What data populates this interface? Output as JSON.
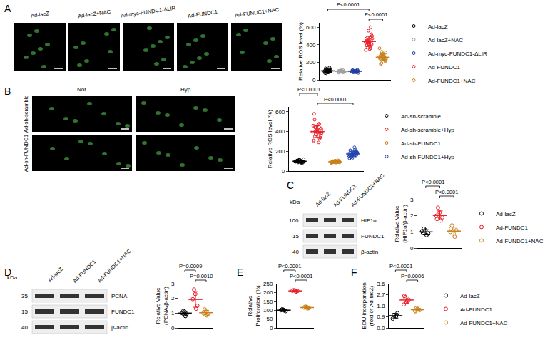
{
  "panel_letters": [
    "A",
    "B",
    "C",
    "D",
    "E",
    "F"
  ],
  "micrographs": {
    "A": {
      "columns": [
        "Ad-lacZ",
        "Ad-lacZ+NAC",
        "Ad-myc-FUNDC1-ΔLIR",
        "Ad-FUNDC1",
        "Ad-FUNDC1+NAC"
      ]
    },
    "B": {
      "columns": [
        "Nor",
        "Hyp"
      ],
      "rows": [
        "Ad-sh-scramble",
        "Ad-sh-FUNDC1"
      ]
    }
  },
  "blots": {
    "C": {
      "unit": "kDa",
      "lanes": [
        "Ad-lacZ",
        "Ad-FUNDC1",
        "Ad-FUNDC1+NAC"
      ],
      "bands": [
        {
          "label": "HIF1α",
          "kDa": 100
        },
        {
          "label": "FUNDC1",
          "kDa": 15
        },
        {
          "label": "β-actin",
          "kDa": 40
        }
      ]
    },
    "D": {
      "unit": "kDa",
      "lanes": [
        "Ad-lacZ",
        "Ad-FUNDC1",
        "Ad-FUNDC1+NAC"
      ],
      "bands": [
        {
          "label": "PCNA",
          "kDa": 35
        },
        {
          "label": "FUNDC1",
          "kDa": 15
        },
        {
          "label": "β-actin",
          "kDa": 40
        }
      ]
    }
  },
  "chart_data": [
    {
      "panel": "A",
      "type": "scatter",
      "y_label": "Relative ROS level (%)",
      "ylim": [
        0,
        650
      ],
      "yticks": [
        0,
        200,
        400,
        600
      ],
      "tick_labels": "y",
      "grid": false,
      "legend": "right",
      "marker": "circle-open",
      "series": [
        {
          "name": "Ad-lacZ",
          "color": "#000000",
          "values": [
            100,
            88,
            112,
            95,
            105,
            78,
            120,
            92,
            108,
            85,
            130,
            98,
            102,
            90,
            115,
            75,
            110,
            96,
            104,
            140
          ],
          "mean": 102,
          "sd": 16
        },
        {
          "name": "Ad-lacZ+NAC",
          "color": "#a0a0a0",
          "values": [
            95,
            88,
            100,
            92,
            105,
            82,
            110,
            98,
            90,
            102,
            86,
            96,
            108,
            94,
            84,
            100,
            91,
            97,
            103,
            89
          ],
          "mean": 95,
          "sd": 7
        },
        {
          "name": "Ad-myc-FUNDC1-ΔLIR",
          "color": "#1f3fa0",
          "values": [
            92,
            100,
            85,
            105,
            95,
            110,
            88,
            98,
            80,
            102,
            94,
            115,
            90,
            96,
            86,
            104,
            99,
            92,
            108,
            97
          ],
          "mean": 97,
          "sd": 8
        },
        {
          "name": "Ad-FUNDC1",
          "color": "#e8202a",
          "values": [
            430,
            380,
            450,
            520,
            410,
            470,
            360,
            440,
            500,
            420,
            395,
            460,
            560,
            340,
            480,
            430,
            405,
            450,
            390,
            600,
            425,
            470,
            350,
            440,
            415
          ],
          "mean": 437,
          "sd": 57
        },
        {
          "name": "Ad-FUNDC1+NAC",
          "color": "#c8801a",
          "values": [
            260,
            240,
            280,
            220,
            300,
            250,
            270,
            190,
            310,
            245,
            265,
            230,
            285,
            360,
            255,
            275,
            210,
            290,
            240,
            260,
            320,
            235,
            270,
            180,
            250
          ],
          "mean": 257,
          "sd": 36
        }
      ],
      "annotations": [
        {
          "text": "P<0.0001",
          "between": [
            "Ad-lacZ",
            "Ad-FUNDC1"
          ]
        },
        {
          "text": "P<0.0001",
          "between": [
            "Ad-FUNDC1",
            "Ad-FUNDC1+NAC"
          ]
        }
      ]
    },
    {
      "panel": "B",
      "type": "scatter",
      "y_label": "Relative ROS level (%)",
      "ylim": [
        0,
        650
      ],
      "yticks": [
        0,
        200,
        400,
        600
      ],
      "tick_labels": "y",
      "grid": false,
      "legend": "right",
      "marker": "circle-open",
      "series": [
        {
          "name": "Ad-sh-scramble",
          "color": "#000000",
          "values": [
            100,
            92,
            108,
            85,
            115,
            95,
            104,
            88,
            120,
            98,
            102,
            90,
            110,
            96,
            80,
            106,
            94,
            112,
            99,
            87,
            103,
            97
          ],
          "mean": 99,
          "sd": 10
        },
        {
          "name": "Ad-sh-scramble+Hyp",
          "color": "#e8202a",
          "values": [
            400,
            350,
            450,
            380,
            420,
            310,
            480,
            370,
            430,
            390,
            520,
            340,
            410,
            460,
            290,
            440,
            360,
            400,
            580,
            330,
            415,
            385,
            470,
            350,
            425,
            395,
            300,
            445,
            375,
            405
          ],
          "mean": 399,
          "sd": 60
        },
        {
          "name": "Ad-sh-FUNDC1",
          "color": "#c8801a",
          "values": [
            95,
            88,
            100,
            92,
            105,
            82,
            98,
            90,
            102,
            86,
            96,
            108,
            94,
            84,
            100,
            91,
            97,
            103,
            89,
            93,
            99,
            87,
            101,
            95,
            90
          ],
          "mean": 94,
          "sd": 7
        },
        {
          "name": "Ad-sh-FUNDC1+Hyp",
          "color": "#1f3fb0",
          "values": [
            175,
            150,
            200,
            160,
            190,
            130,
            220,
            170,
            185,
            145,
            210,
            165,
            180,
            155,
            240,
            140,
            195,
            175,
            160,
            205,
            125,
            185,
            170,
            150,
            190
          ],
          "mean": 174,
          "sd": 27
        }
      ],
      "annotations": [
        {
          "text": "P<0.0001",
          "between": [
            "Ad-sh-scramble",
            "Ad-sh-scramble+Hyp"
          ]
        },
        {
          "text": "P<0.0001",
          "between": [
            "Ad-sh-scramble+Hyp",
            "Ad-sh-FUNDC1+Hyp"
          ]
        }
      ]
    },
    {
      "panel": "C",
      "type": "scatter",
      "y_label": "Relative Value\n(HIF1α/β-actin)",
      "ylim": [
        0,
        3
      ],
      "yticks": [
        0,
        1,
        2,
        3
      ],
      "tick_labels": "y",
      "grid": false,
      "legend": "right",
      "marker": "circle-open",
      "series": [
        {
          "name": "Ad-lacZ",
          "color": "#000000",
          "values": [
            1.05,
            0.8,
            1.2,
            0.9,
            1.1,
            0.95
          ],
          "mean": 1.0,
          "sd": 0.14
        },
        {
          "name": "Ad-FUNDC1",
          "color": "#e8202a",
          "values": [
            2.0,
            1.7,
            2.5,
            1.9,
            2.2,
            1.8
          ],
          "mean": 2.02,
          "sd": 0.28
        },
        {
          "name": "Ad-FUNDC1+NAC",
          "color": "#c8801a",
          "values": [
            1.0,
            0.7,
            1.4,
            1.1,
            0.9,
            1.2
          ],
          "mean": 1.05,
          "sd": 0.24
        }
      ],
      "annotations": [
        {
          "text": "P<0.0001",
          "between": [
            "Ad-lacZ",
            "Ad-FUNDC1"
          ]
        },
        {
          "text": "P<0.0001",
          "between": [
            "Ad-FUNDC1",
            "Ad-FUNDC1+NAC"
          ]
        }
      ]
    },
    {
      "panel": "D",
      "type": "scatter",
      "y_label": "Relative Value\n(PCNA/β-actin)",
      "ylim": [
        0,
        3
      ],
      "yticks": [
        0,
        1,
        2,
        3
      ],
      "tick_labels": "y",
      "grid": false,
      "legend": false,
      "marker": "circle-open",
      "series": [
        {
          "name": "Ad-lacZ",
          "color": "#000000",
          "values": [
            1.0,
            0.8,
            1.15,
            0.95,
            1.1
          ],
          "mean": 1.0,
          "sd": 0.13
        },
        {
          "name": "Ad-FUNDC1",
          "color": "#e8202a",
          "values": [
            1.95,
            1.3,
            2.6,
            1.5,
            2.3
          ],
          "mean": 1.93,
          "sd": 0.53
        },
        {
          "name": "Ad-FUNDC1+NAC",
          "color": "#c8801a",
          "values": [
            1.0,
            0.85,
            1.25,
            0.95,
            1.1
          ],
          "mean": 1.03,
          "sd": 0.16
        }
      ],
      "annotations": [
        {
          "text": "P=0.0009",
          "between": [
            "Ad-lacZ",
            "Ad-FUNDC1"
          ]
        },
        {
          "text": "P=0.0010",
          "between": [
            "Ad-FUNDC1",
            "Ad-FUNDC1+NAC"
          ]
        }
      ]
    },
    {
      "panel": "E",
      "type": "scatter",
      "y_label": "Relative\nProliferation (%)",
      "ylim": [
        0,
        250
      ],
      "yticks": [
        0,
        50,
        100,
        150,
        200,
        250
      ],
      "tick_labels": "y",
      "grid": false,
      "legend": false,
      "marker": "circle-open",
      "series": [
        {
          "name": "Ad-lacZ",
          "color": "#000000",
          "values": [
            100,
            98,
            105,
            95,
            102
          ],
          "mean": 100,
          "sd": 4
        },
        {
          "name": "Ad-FUNDC1",
          "color": "#e8202a",
          "values": [
            210,
            205,
            213,
            208,
            211
          ],
          "mean": 209,
          "sd": 3
        },
        {
          "name": "Ad-FUNDC1+NAC",
          "color": "#c8801a",
          "values": [
            115,
            110,
            120,
            112,
            118
          ],
          "mean": 115,
          "sd": 4
        }
      ],
      "annotations": [
        {
          "text": "P<0.0001",
          "between": [
            "Ad-lacZ",
            "Ad-FUNDC1"
          ]
        },
        {
          "text": "P<0.0001",
          "between": [
            "Ad-FUNDC1",
            "Ad-FUNDC1+NAC"
          ]
        }
      ]
    },
    {
      "panel": "F",
      "type": "scatter",
      "y_label": "EDU incorporation\n(fold of Ad-lacZ)",
      "ylim": [
        0,
        3.6
      ],
      "yticks": [
        {
          "value": 0,
          "label": "0.0"
        },
        {
          "value": 0.9,
          "label": "0.9"
        },
        {
          "value": 1.8,
          "label": "1.8"
        },
        {
          "value": 2.7,
          "label": "2.7"
        },
        {
          "value": 3.6,
          "label": "3.6"
        }
      ],
      "tick_labels": "y",
      "grid": false,
      "legend": "right",
      "marker": "circle-open",
      "series": [
        {
          "name": "Ad-lacZ",
          "color": "#000000",
          "values": [
            0.75,
            0.95,
            1.05,
            1.2
          ],
          "mean": 0.99,
          "sd": 0.19
        },
        {
          "name": "Ad-FUNDC1",
          "color": "#e8202a",
          "values": [
            1.9,
            2.2,
            2.5,
            2.3,
            2.1,
            2.6
          ],
          "mean": 2.27,
          "sd": 0.26
        },
        {
          "name": "Ad-FUNDC1+NAC",
          "color": "#c8801a",
          "values": [
            1.4,
            1.5,
            1.6,
            1.45,
            1.55,
            1.35
          ],
          "mean": 1.48,
          "sd": 0.09
        }
      ],
      "annotations": [
        {
          "text": "P<0.0001",
          "between": [
            "Ad-lacZ",
            "Ad-FUNDC1"
          ]
        },
        {
          "text": "P=0.0006",
          "between": [
            "Ad-FUNDC1",
            "Ad-FUNDC1+NAC"
          ]
        }
      ]
    }
  ]
}
